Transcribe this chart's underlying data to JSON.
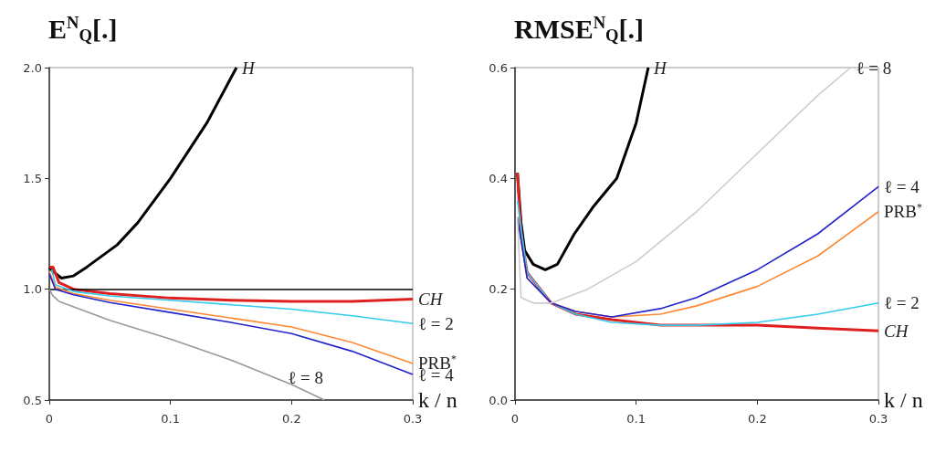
{
  "chart_data": [
    {
      "type": "line",
      "title": "E$^{N}$$_{Q}$[.]",
      "xlabel": "k / n",
      "xlim": [
        0,
        0.3
      ],
      "xticks": [
        0,
        0.1,
        0.2,
        0.3
      ],
      "ylim": [
        0.5,
        2.0
      ],
      "yticks": [
        {
          "value": 0.5,
          "label": "0.5"
        },
        {
          "value": 1.0,
          "label": "1.0"
        },
        {
          "value": 1.5,
          "label": "1.5"
        },
        {
          "value": 2.0,
          "label": "2.0"
        }
      ],
      "grid": false,
      "legend": false,
      "ref_lines": [
        {
          "axis": "y",
          "value": 1.0,
          "color": "#000000"
        }
      ],
      "series": [
        {
          "name": "H",
          "color": "#000000",
          "x": [
            0,
            0.003,
            0.01,
            0.02,
            0.031,
            0.056,
            0.073,
            0.1,
            0.13,
            0.1545
          ],
          "values": [
            1.1,
            1.08,
            1.05,
            1.06,
            1.1,
            1.2,
            1.3,
            1.5,
            1.75,
            2.0
          ]
        },
        {
          "name": "CH",
          "color": "#e02020",
          "x": [
            0,
            0.003,
            0.008,
            0.02,
            0.05,
            0.1,
            0.15,
            0.2,
            0.25,
            0.3
          ],
          "values": [
            1.1,
            1.1,
            1.03,
            1.0,
            0.98,
            0.96,
            0.95,
            0.945,
            0.945,
            0.955
          ]
        },
        {
          "name": "ℓ = 2",
          "color": "#33ccee",
          "x": [
            0.002,
            0.005,
            0.02,
            0.05,
            0.1,
            0.15,
            0.2,
            0.25,
            0.3
          ],
          "values": [
            1.09,
            1.02,
            0.99,
            0.97,
            0.95,
            0.93,
            0.91,
            0.88,
            0.845
          ]
        },
        {
          "name": "PRB$^{*}$",
          "color": "#ff8833",
          "x": [
            0,
            0.005,
            0.02,
            0.05,
            0.1,
            0.15,
            0.2,
            0.25,
            0.3
          ],
          "values": [
            1.08,
            1.01,
            0.98,
            0.95,
            0.91,
            0.87,
            0.83,
            0.76,
            0.665
          ]
        },
        {
          "name": "ℓ = 4",
          "color": "#2222cc",
          "x": [
            0,
            0.005,
            0.02,
            0.05,
            0.1,
            0.15,
            0.2,
            0.25,
            0.3
          ],
          "values": [
            1.07,
            1.0,
            0.975,
            0.94,
            0.895,
            0.85,
            0.8,
            0.72,
            0.615
          ]
        },
        {
          "name": "ℓ = 8",
          "color": "#999999",
          "x": [
            0,
            0.003,
            0.008,
            0.05,
            0.1,
            0.15,
            0.2,
            0.227
          ],
          "values": [
            1.0,
            0.97,
            0.945,
            0.86,
            0.775,
            0.68,
            0.57,
            0.5
          ]
        }
      ]
    },
    {
      "type": "line",
      "title": "RMSE$^{N}$$_{Q}$[.]",
      "xlabel": "k / n",
      "xlim": [
        0,
        0.3
      ],
      "xticks": [
        0,
        0.1,
        0.2,
        0.3
      ],
      "ylim": [
        0,
        0.6
      ],
      "yticks": [
        {
          "value": 0,
          "label": "0.0"
        },
        {
          "value": 0.2,
          "label": "0.2"
        },
        {
          "value": 0.4,
          "label": "0.4"
        },
        {
          "value": 0.6,
          "label": "0.6"
        }
      ],
      "grid": false,
      "legend": false,
      "series": [
        {
          "name": "H",
          "color": "#000000",
          "x": [
            0.002,
            0.005,
            0.008,
            0.015,
            0.025,
            0.035,
            0.049,
            0.065,
            0.084,
            0.1,
            0.11
          ],
          "values": [
            0.41,
            0.32,
            0.27,
            0.245,
            0.235,
            0.245,
            0.3,
            0.35,
            0.4,
            0.5,
            0.6
          ]
        },
        {
          "name": "CH",
          "color": "#e02020",
          "x": [
            0.002,
            0.005,
            0.01,
            0.03,
            0.05,
            0.08,
            0.12,
            0.15,
            0.2,
            0.25,
            0.3
          ],
          "values": [
            0.41,
            0.3,
            0.23,
            0.175,
            0.155,
            0.145,
            0.135,
            0.135,
            0.135,
            0.13,
            0.125
          ]
        },
        {
          "name": "ℓ = 2",
          "color": "#33ccee",
          "x": [
            0.002,
            0.01,
            0.03,
            0.05,
            0.08,
            0.12,
            0.15,
            0.2,
            0.25,
            0.3
          ],
          "values": [
            0.36,
            0.23,
            0.175,
            0.155,
            0.14,
            0.135,
            0.135,
            0.14,
            0.155,
            0.175
          ]
        },
        {
          "name": "PRB$^{*}$",
          "color": "#ff8833",
          "x": [
            0.002,
            0.01,
            0.03,
            0.05,
            0.08,
            0.12,
            0.15,
            0.2,
            0.25,
            0.3
          ],
          "values": [
            0.33,
            0.22,
            0.175,
            0.16,
            0.15,
            0.155,
            0.17,
            0.205,
            0.26,
            0.34
          ]
        },
        {
          "name": "ℓ = 4",
          "color": "#2222cc",
          "x": [
            0.002,
            0.01,
            0.03,
            0.05,
            0.08,
            0.12,
            0.15,
            0.2,
            0.25,
            0.3
          ],
          "values": [
            0.33,
            0.22,
            0.175,
            0.16,
            0.15,
            0.165,
            0.185,
            0.235,
            0.3,
            0.385
          ]
        },
        {
          "name": "ℓ = 8",
          "color": "#cccccc",
          "x": [
            0.002,
            0.005,
            0.015,
            0.03,
            0.06,
            0.1,
            0.15,
            0.2,
            0.25,
            0.277
          ],
          "values": [
            0.33,
            0.185,
            0.175,
            0.175,
            0.2,
            0.25,
            0.34,
            0.445,
            0.55,
            0.6
          ]
        }
      ]
    }
  ]
}
